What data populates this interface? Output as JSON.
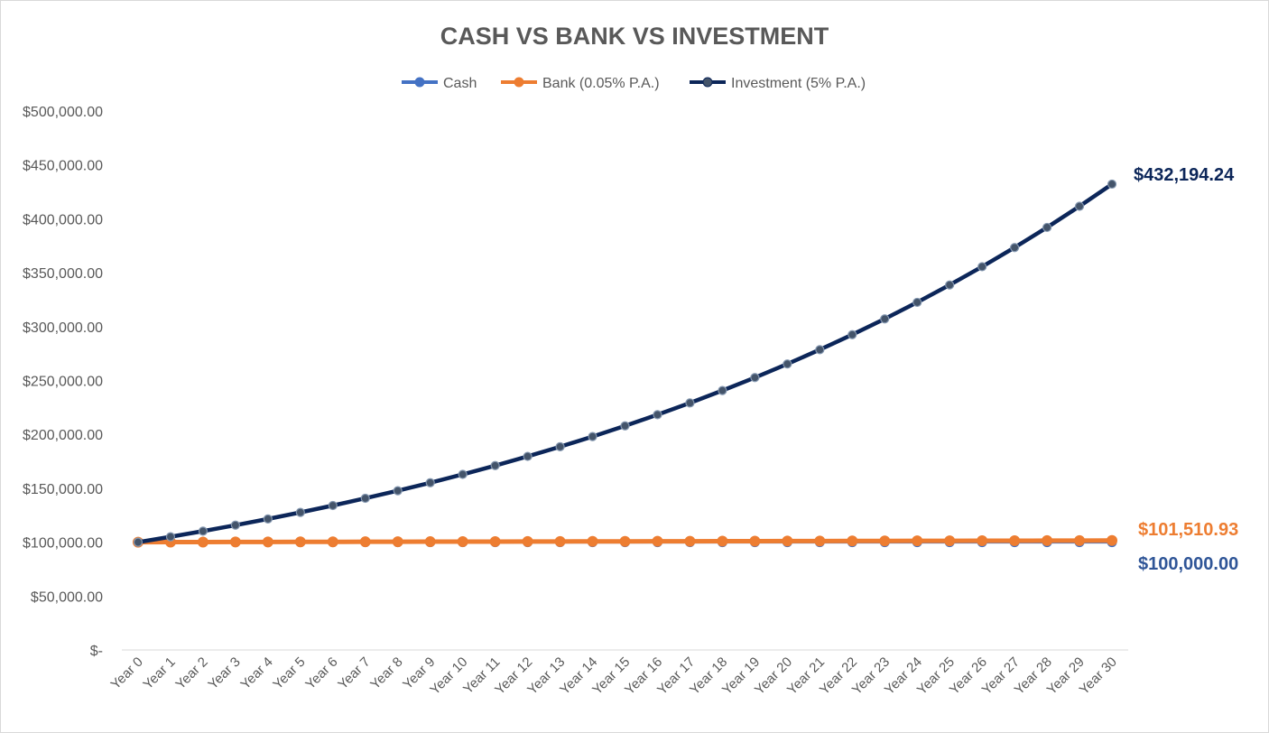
{
  "chart_data": {
    "type": "line",
    "title": "CASH VS BANK VS INVESTMENT",
    "xlabel": "",
    "ylabel": "",
    "ylim": [
      0,
      500000
    ],
    "yticks": [
      0,
      50000,
      100000,
      150000,
      200000,
      250000,
      300000,
      350000,
      400000,
      450000,
      500000
    ],
    "ytick_labels": [
      "$-",
      "$50,000.00",
      "$100,000.00",
      "$150,000.00",
      "$200,000.00",
      "$250,000.00",
      "$300,000.00",
      "$350,000.00",
      "$400,000.00",
      "$450,000.00",
      "$500,000.00"
    ],
    "categories": [
      "Year 0",
      "Year 1",
      "Year 2",
      "Year 3",
      "Year 4",
      "Year 5",
      "Year 6",
      "Year 7",
      "Year 8",
      "Year 9",
      "Year 10",
      "Year 11",
      "Year 12",
      "Year 13",
      "Year 14",
      "Year 15",
      "Year 16",
      "Year 17",
      "Year 18",
      "Year 19",
      "Year 20",
      "Year 21",
      "Year 22",
      "Year 23",
      "Year 24",
      "Year 25",
      "Year 26",
      "Year 27",
      "Year 28",
      "Year 29",
      "Year 30"
    ],
    "grid": false,
    "legend_position": "top-center",
    "series": [
      {
        "name": "Cash",
        "color": "#4472c4",
        "marker": "circle",
        "values": [
          100000,
          100000,
          100000,
          100000,
          100000,
          100000,
          100000,
          100000,
          100000,
          100000,
          100000,
          100000,
          100000,
          100000,
          100000,
          100000,
          100000,
          100000,
          100000,
          100000,
          100000,
          100000,
          100000,
          100000,
          100000,
          100000,
          100000,
          100000,
          100000,
          100000,
          100000
        ],
        "end_label": "$100,000.00",
        "end_label_color": "#2f5597"
      },
      {
        "name": "Bank (0.05% P.A.)",
        "color": "#ed7d31",
        "marker": "circle",
        "values": [
          100000,
          100050,
          100100.03,
          100150.08,
          100200.15,
          100250.25,
          100300.38,
          100350.53,
          100400.7,
          100450.9,
          100501.13,
          100551.38,
          100601.65,
          100651.95,
          100702.28,
          100752.63,
          100803.0,
          100853.4,
          100903.83,
          100954.28,
          101004.76,
          101055.26,
          101105.79,
          101156.34,
          101206.92,
          101257.52,
          101308.15,
          101358.8,
          101409.48,
          101460.19,
          101510.93
        ],
        "end_label": "$101,510.93",
        "end_label_color": "#ed7d31"
      },
      {
        "name": "Investment (5% P.A.)",
        "color": "#0c2659",
        "marker_fill": "#44546a",
        "marker": "circle",
        "values": [
          100000,
          105000,
          110250,
          115762.5,
          121550.63,
          127628.16,
          134009.56,
          140710.04,
          147745.54,
          155132.82,
          162889.46,
          171033.94,
          179585.63,
          188564.91,
          197993.16,
          207892.82,
          218287.46,
          229201.83,
          240661.92,
          252695.02,
          265329.77,
          278596.26,
          292526.07,
          307152.38,
          322510.0,
          338635.49,
          355567.27,
          373345.63,
          392012.91,
          411613.56,
          432194.24
        ],
        "end_label": "$432,194.24",
        "end_label_color": "#0c2659"
      }
    ]
  }
}
